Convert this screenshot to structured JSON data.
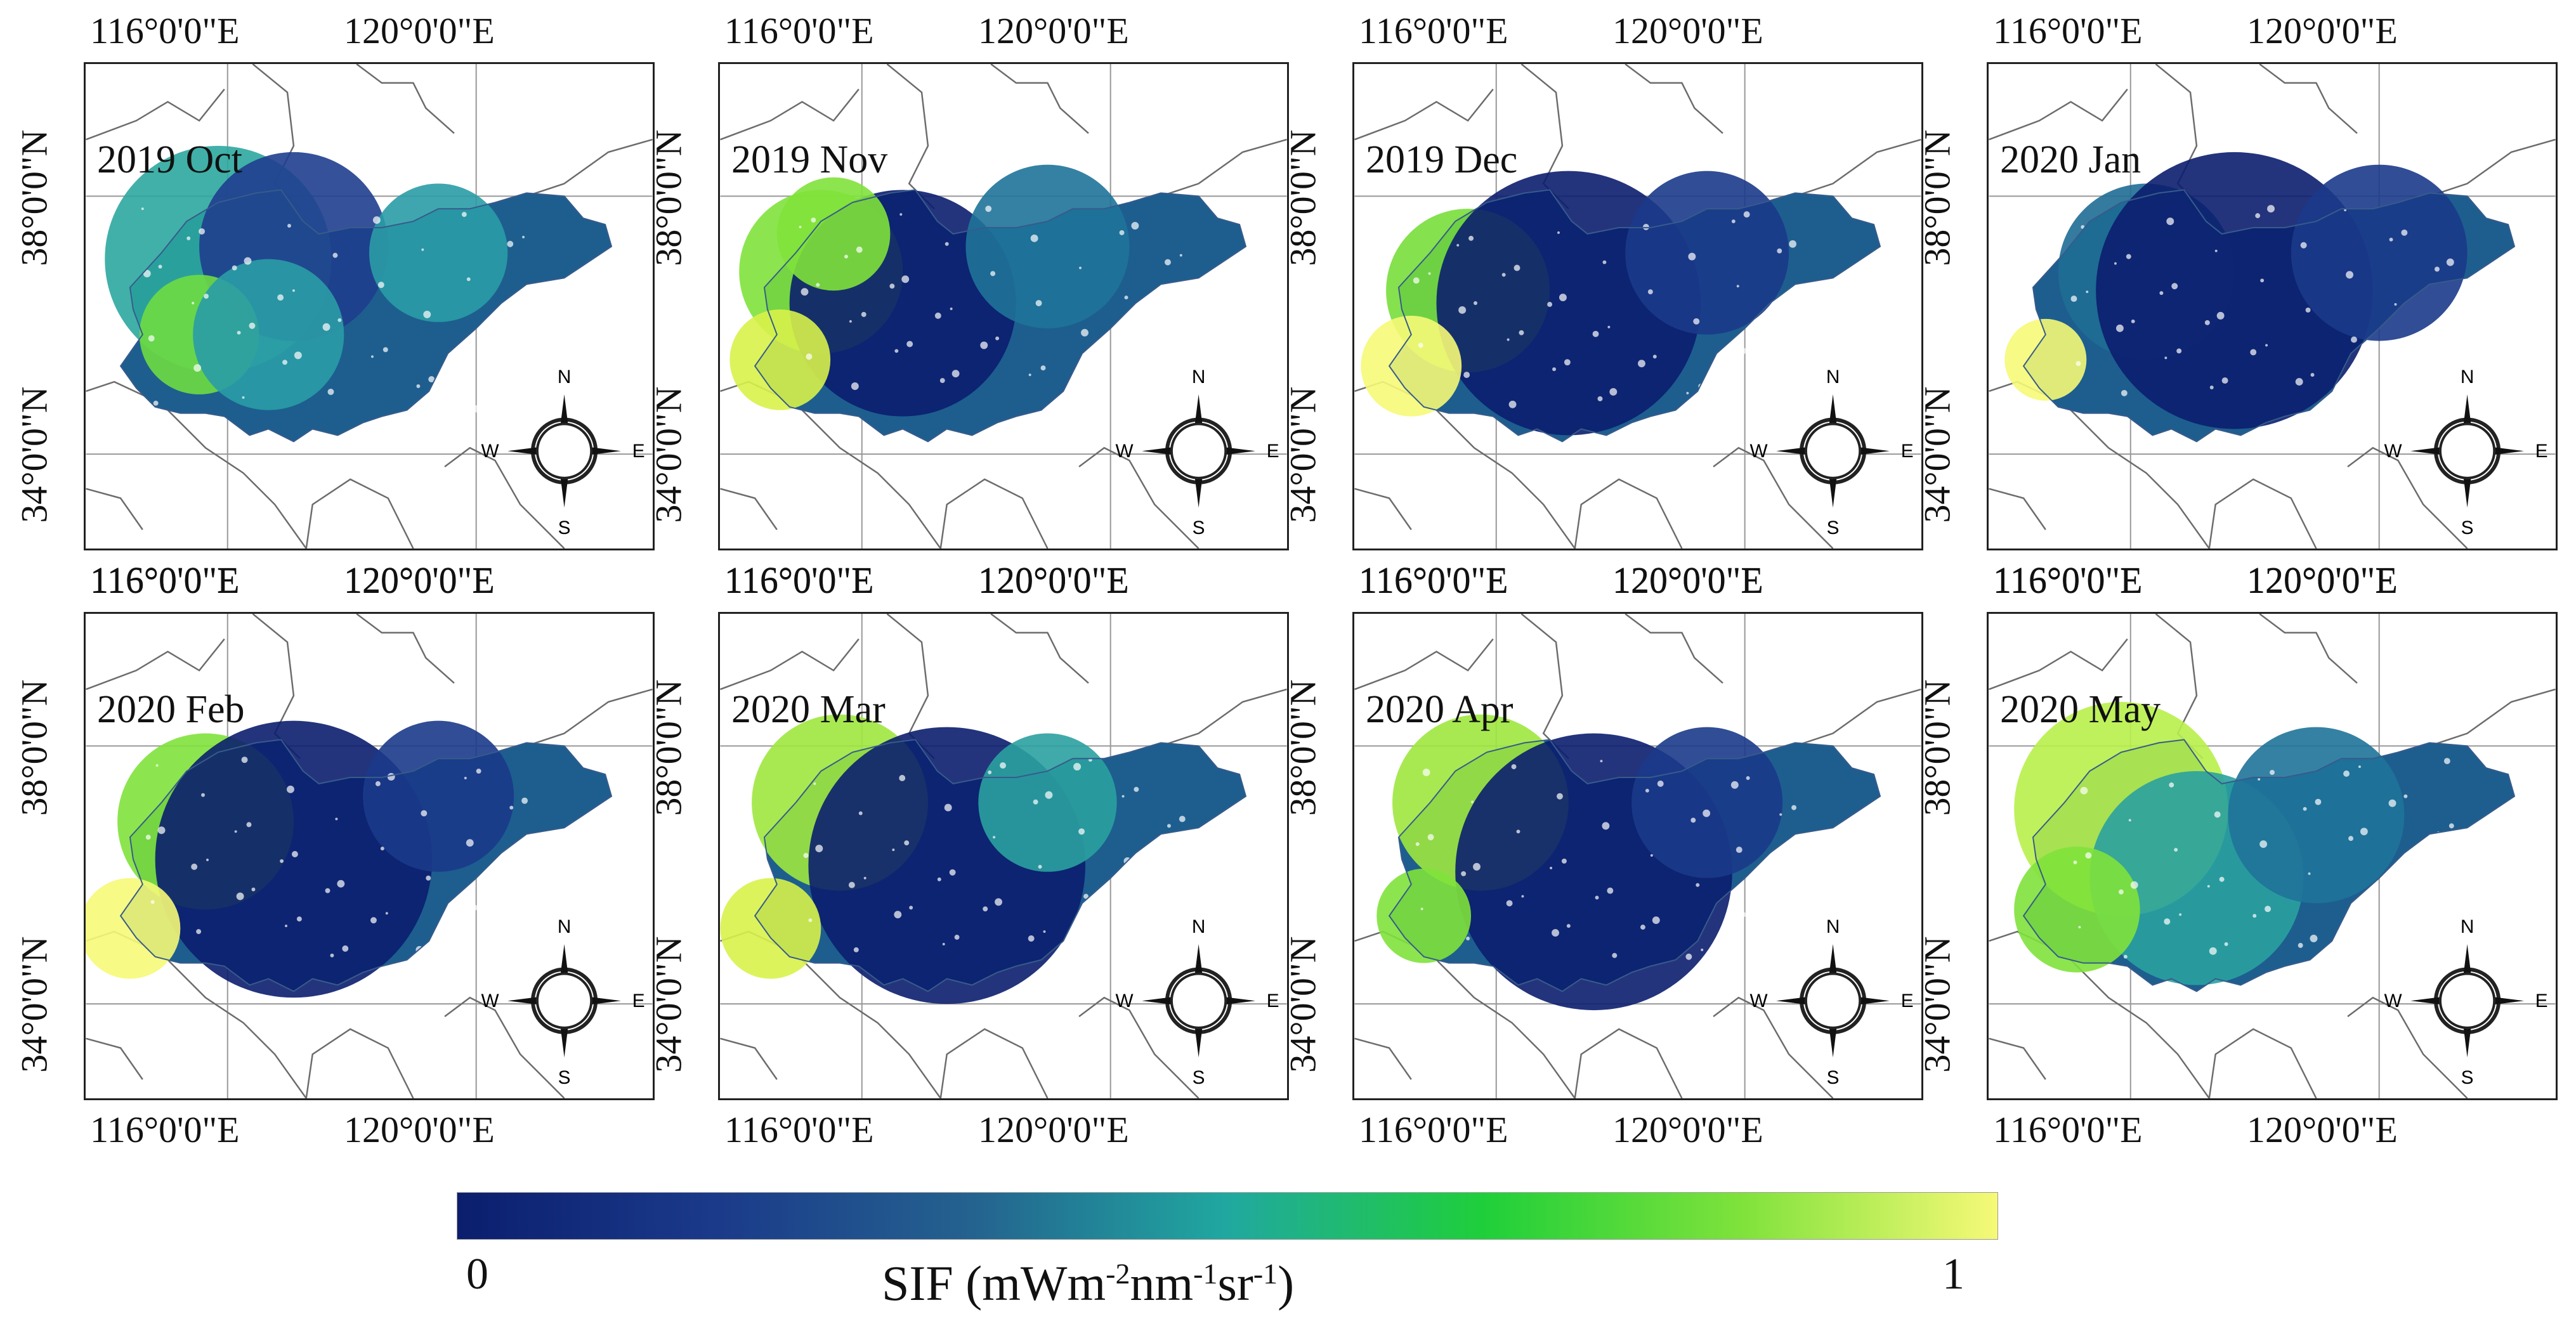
{
  "figure": {
    "panels": [
      {
        "label": "2019 Oct"
      },
      {
        "label": "2019 Nov"
      },
      {
        "label": "2019 Dec"
      },
      {
        "label": "2020 Jan"
      },
      {
        "label": "2020 Feb"
      },
      {
        "label": "2020 Mar"
      },
      {
        "label": "2020 Apr"
      },
      {
        "label": "2020 May"
      }
    ],
    "axis_ticks": {
      "top_left": "116°0'0\"E",
      "top_right": "120°0'0\"E",
      "left_upper": "38°0'0\"N",
      "left_lower": "34°0'0\"N",
      "bottom_left": "116°0'0\"E",
      "bottom_right": "120°0'0\"E"
    },
    "compass": {
      "n": "N",
      "s": "S",
      "e": "E",
      "w": "W"
    }
  },
  "legend": {
    "min": "0",
    "max": "1",
    "title_main": "SIF (mWm",
    "title_sup1": "-2",
    "title_mid1": "nm",
    "title_sup2": "-1",
    "title_mid2": "sr",
    "title_sup3": "-1",
    "title_end": ")",
    "colors": [
      "#0b1e6e",
      "#1b3a8a",
      "#24628f",
      "#20a8a0",
      "#1fcf3a",
      "#7fe23b",
      "#f6f977"
    ]
  }
}
